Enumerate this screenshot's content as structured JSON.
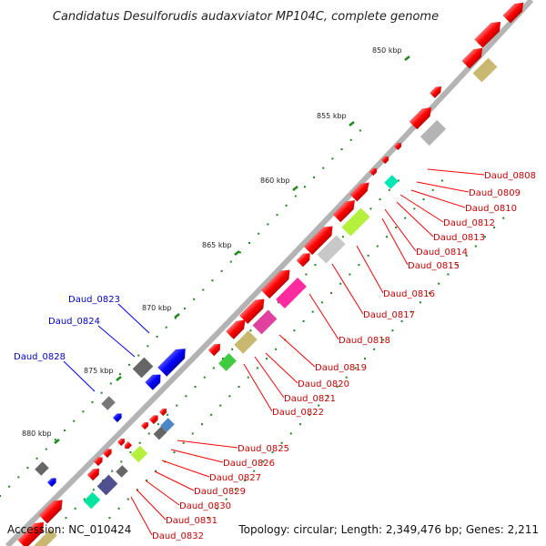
{
  "title": "Candidatus Desulforudis audaxviator MP104C, complete genome",
  "footer": {
    "accession": "Accession: NC_010424",
    "topology": "Topology: circular; Length: 2,349,476 bp; Genes: 2,211"
  },
  "colors": {
    "forward_strand": "#ff0000",
    "reverse_strand": "#0000ff",
    "backbone": "#888888",
    "tick": "#1a8a1a",
    "label_forward": "#cc0000",
    "label_reverse": "#0000cc"
  },
  "kbp_ticks": [
    "850 kbp",
    "855 kbp",
    "860 kbp",
    "865 kbp",
    "870 kbp",
    "875 kbp",
    "880 kbp"
  ],
  "gene_labels_forward": [
    "Daud_0808",
    "Daud_0809",
    "Daud_0810",
    "Daud_0812",
    "Daud_0813",
    "Daud_0814",
    "Daud_0815",
    "Daud_0816",
    "Daud_0817",
    "Daud_0818",
    "Daud_0819",
    "Daud_0820",
    "Daud_0821",
    "Daud_0822",
    "Daud_0825",
    "Daud_0826",
    "Daud_0827",
    "Daud_0829",
    "Daud_0830",
    "Daud_0831",
    "Daud_0832"
  ],
  "gene_labels_reverse": [
    "Daud_0823",
    "Daud_0824",
    "Daud_0828"
  ]
}
